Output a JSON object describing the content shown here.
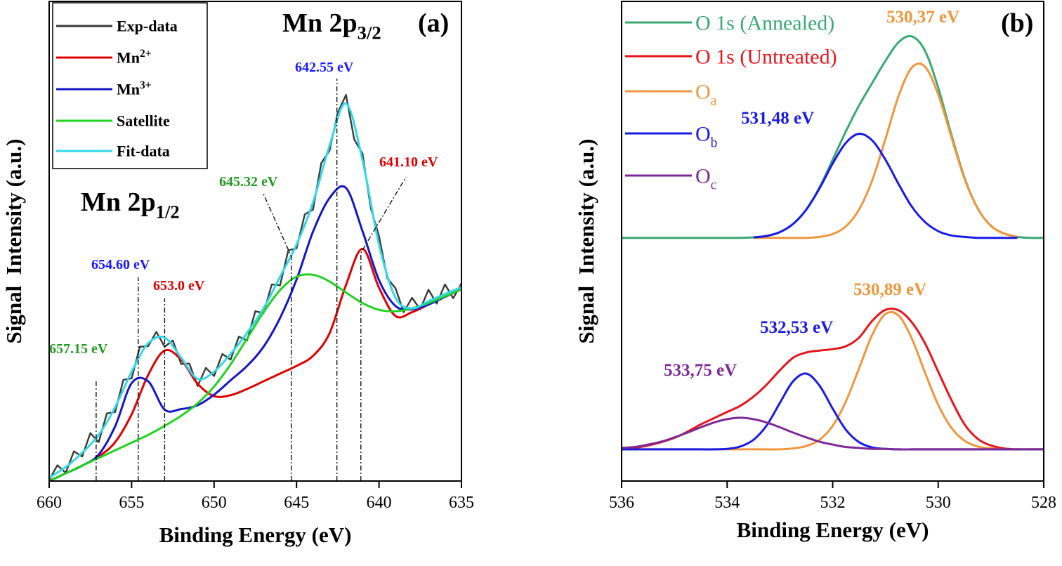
{
  "chart_data": [
    {
      "type": "line",
      "xlabel": "Binding Energy (eV)",
      "ylabel": "Signal  Intensity (a.u.)",
      "xlim": [
        660,
        635
      ],
      "xticks": [
        660,
        655,
        650,
        645,
        640,
        635
      ],
      "ylim": [
        0,
        100
      ],
      "x": [
        660,
        659,
        658,
        657,
        656,
        655,
        654,
        653,
        652,
        651,
        650,
        649,
        648,
        647,
        646,
        645,
        644,
        643,
        642,
        641,
        640,
        639,
        638,
        637,
        636,
        635
      ],
      "series": [
        {
          "name": "Exp-data",
          "color": "#3a3a3a",
          "x": [
            660,
            659.5,
            659,
            658.5,
            658,
            657.5,
            657,
            656.5,
            656,
            655.5,
            655,
            654.5,
            654,
            653.5,
            653,
            652.5,
            652,
            651.5,
            651,
            650.5,
            650,
            649.5,
            649,
            648.5,
            648,
            647.5,
            647,
            646.5,
            646,
            645.5,
            645,
            644.5,
            644,
            643.5,
            643,
            642.5,
            642,
            641.5,
            641,
            640.5,
            640,
            639.5,
            639,
            638.5,
            638,
            637.5,
            637,
            636.5,
            636,
            635.5,
            635
          ],
          "values": [
            0.2,
            3.3,
            1.7,
            6.2,
            5.1,
            10.0,
            8.1,
            14.1,
            14.4,
            21.1,
            21.4,
            28.0,
            28.1,
            31.1,
            28.0,
            29.3,
            24.4,
            24.5,
            19.8,
            23.6,
            21.9,
            26.5,
            25.3,
            30.1,
            29.3,
            35.4,
            35.0,
            41.0,
            40.8,
            48.1,
            48.5,
            55.6,
            56.6,
            66.3,
            68.9,
            76.8,
            80.5,
            71.2,
            68.3,
            56.9,
            51.1,
            42.3,
            40.2,
            35.2,
            38.2,
            35.8,
            39.9,
            37.0,
            41.0,
            38.1,
            41.2
          ]
        },
        {
          "name": "Mn",
          "name_sup": "2+",
          "color": "#e00000",
          "values": [
            0,
            1.6,
            3.2,
            5.1,
            8.1,
            13.9,
            22.1,
            27.2,
            25.3,
            20.3,
            17.7,
            17.9,
            19.2,
            20.8,
            22.4,
            24,
            26.1,
            30.8,
            40.9,
            48.4,
            40.3,
            34.4,
            35.2,
            36.8,
            38.4,
            40
          ]
        },
        {
          "name": "Mn",
          "name_sup": "3+",
          "color": "#1515c8",
          "values": [
            0,
            1.6,
            3.2,
            5.5,
            11.4,
            20.4,
            20.8,
            14.9,
            15.0,
            15.8,
            18.0,
            21.0,
            24,
            28,
            34,
            42,
            52,
            59,
            61.1,
            52.1,
            41.9,
            36.5,
            35.8,
            36.8,
            38.4,
            40
          ]
        },
        {
          "name": "Satellite",
          "color": "#22d222",
          "values": [
            0,
            1.6,
            3.2,
            4.8,
            6.4,
            8,
            9.6,
            11.5,
            13.6,
            16.2,
            19.7,
            24.3,
            29.7,
            35.2,
            39.8,
            42.6,
            43.0,
            41.6,
            39.3,
            37.1,
            35.7,
            35.4,
            36.0,
            37.1,
            38.5,
            40
          ]
        },
        {
          "name": "Fit-data",
          "color": "#30d8e8",
          "values": [
            0.7,
            2.9,
            5.9,
            9.6,
            15.4,
            22.8,
            28.7,
            29.9,
            25.7,
            21.3,
            22.8,
            26.5,
            30.9,
            36,
            42.6,
            49.3,
            58.1,
            69.9,
            78.7,
            66.9,
            49.3,
            38.2,
            36,
            37.5,
            39,
            40.4
          ]
        }
      ],
      "annotations": [
        {
          "text": "Mn 2p",
          "sub": "3/2"
        },
        {
          "text": "(a)"
        },
        {
          "text": "Mn 2p",
          "sub": "1/2"
        },
        {
          "text": "642.55 eV",
          "x": 642.55,
          "color": "#1a1aff"
        },
        {
          "text": "641.10 eV",
          "x": 641.1,
          "color": "#e00000"
        },
        {
          "text": "645.32 eV",
          "x": 645.32,
          "color": "#1f9a1f"
        },
        {
          "text": "654.60 eV",
          "x": 654.6,
          "color": "#1a1aff"
        },
        {
          "text": "653.0 eV",
          "x": 653.0,
          "color": "#e00000"
        },
        {
          "text": "657.15 eV",
          "x": 657.15,
          "color": "#1f9a1f"
        }
      ]
    },
    {
      "type": "line",
      "xlabel": "Binding Energy (eV)",
      "ylabel": "Signal  Intensity (a.u.)",
      "xlim": [
        536,
        528
      ],
      "xticks": [
        536,
        534,
        532,
        530,
        528
      ],
      "ylim": [
        0,
        100
      ],
      "x": [
        536,
        535.75,
        535.5,
        535.25,
        535,
        534.75,
        534.5,
        534.25,
        534,
        533.75,
        533.5,
        533.25,
        533,
        532.75,
        532.5,
        532.25,
        532,
        531.75,
        531.5,
        531.25,
        531,
        530.75,
        530.5,
        530.25,
        530,
        529.75,
        529.5,
        529.25,
        529,
        528.75,
        528.5,
        528.25,
        528
      ],
      "series": [
        {
          "name": "O 1s (Annealed)",
          "color": "#3aa872",
          "values": [
            50.7,
            50.7,
            50.7,
            50.7,
            50.7,
            50.7,
            50.7,
            50.7,
            50.7,
            50.7,
            50.8,
            51.1,
            51.9,
            53.6,
            56.6,
            61.2,
            67.0,
            72.9,
            78.3,
            83.0,
            87.6,
            91.5,
            92.7,
            89.7,
            82.0,
            72.2,
            63.2,
            56.8,
            53.2,
            51.6,
            50.9,
            50.7,
            50.7
          ]
        },
        {
          "name": "O 1s (Untreated)",
          "color": "#e8141c",
          "values": [
            6.6,
            6.9,
            7.4,
            8.1,
            9.0,
            10.3,
            11.8,
            13.1,
            14.4,
            15.7,
            17.6,
            20.1,
            23.1,
            25.7,
            26.8,
            27.2,
            27.5,
            28.1,
            29.9,
            33.4,
            35.7,
            35.6,
            33.1,
            28.7,
            22.8,
            16.9,
            11.8,
            8.8,
            7.4,
            6.8,
            6.6,
            6.6,
            6.6
          ]
        },
        {
          "name": "O",
          "name_sub": "a",
          "color": "#f0963c",
          "values": [
            6.6,
            6.6,
            6.6,
            6.6,
            6.6,
            6.6,
            6.6,
            6.6,
            6.6,
            6.6,
            6.6,
            6.6,
            6.6,
            6.8,
            7.3,
            8.6,
            11.5,
            16.6,
            23.5,
            30.5,
            34.8,
            34.5,
            29.7,
            22.6,
            15.9,
            11.1,
            8.4,
            7.2,
            6.8,
            6.6,
            6.6,
            6.6,
            6.6
          ]
        },
        {
          "name": "O",
          "name_sub": "b",
          "color": "#1a1ae6",
          "values": [
            6.6,
            6.6,
            6.6,
            6.6,
            6.6,
            6.6,
            6.6,
            6.6,
            6.7,
            7.2,
            8.6,
            11.6,
            16.3,
            20.8,
            22.4,
            19.9,
            15.1,
            10.7,
            8.1,
            7.0,
            6.7,
            6.6,
            6.6,
            6.6,
            6.6,
            6.6,
            6.6,
            6.6,
            6.6,
            6.6,
            6.6,
            6.6,
            6.6
          ]
        },
        {
          "name": "O",
          "name_sub": "c",
          "color": "#7d2a96",
          "values": [
            6.9,
            7.1,
            7.6,
            8.2,
            9.1,
            10.1,
            11.2,
            12.2,
            12.9,
            13.2,
            12.9,
            12.2,
            11.2,
            10.1,
            9.1,
            8.2,
            7.6,
            7.1,
            6.9,
            6.7,
            6.7,
            6.6,
            6.6,
            6.6,
            6.6,
            6.6,
            6.6,
            6.6,
            6.6,
            6.6,
            6.6,
            6.6,
            6.6
          ]
        },
        {
          "color": "#f0963c",
          "values": [
            null,
            null,
            null,
            null,
            null,
            null,
            null,
            null,
            null,
            null,
            50.7,
            50.7,
            50.7,
            50.7,
            50.7,
            50.9,
            51.5,
            53.1,
            56.6,
            62.7,
            71.3,
            80.3,
            86.2,
            86.4,
            80.6,
            71.7,
            63.0,
            56.8,
            53.2,
            51.6,
            50.9,
            null,
            null
          ]
        },
        {
          "color": "#1a1ae6",
          "values": [
            null,
            null,
            null,
            null,
            null,
            null,
            null,
            null,
            null,
            null,
            50.8,
            51.1,
            51.9,
            53.6,
            56.6,
            61.0,
            66.2,
            70.5,
            72.4,
            71.0,
            67.0,
            61.9,
            57.2,
            54.0,
            52.1,
            51.2,
            50.9,
            50.7,
            50.7,
            50.7,
            50.7,
            null,
            null
          ]
        }
      ],
      "annotations": [
        {
          "text": "(b)"
        },
        {
          "text": "530,37 eV",
          "color": "#f0963c"
        },
        {
          "text": "531,48 eV",
          "color": "#1a1ae6"
        },
        {
          "text": "530,89 eV",
          "color": "#f0963c"
        },
        {
          "text": "532,53 eV",
          "color": "#1a1ae6"
        },
        {
          "text": "533,75 eV",
          "color": "#7d2a96"
        }
      ]
    }
  ]
}
